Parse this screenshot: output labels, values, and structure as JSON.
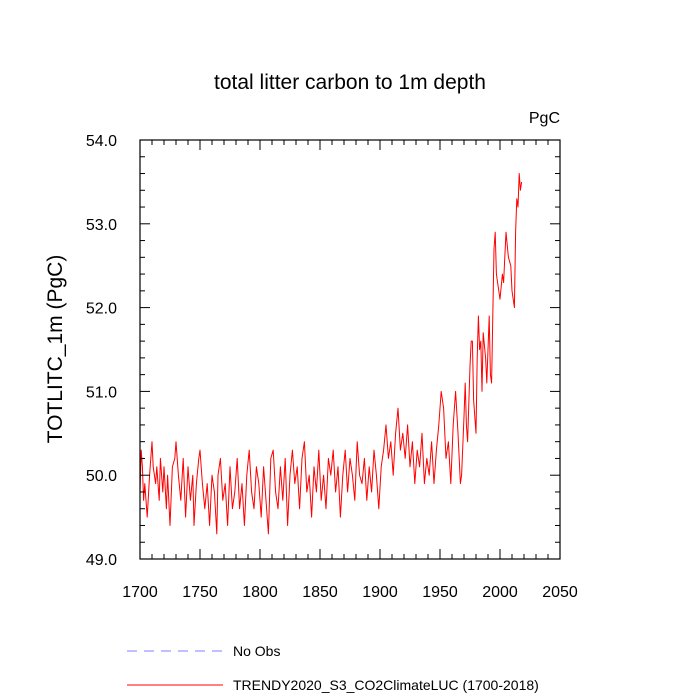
{
  "chart_data": {
    "type": "line",
    "title": "total litter carbon to 1m depth",
    "units_label": "PgC",
    "ylabel": "TOTLITC_1m  (PgC)",
    "xlabel": "",
    "xlim": [
      1700,
      2050
    ],
    "ylim": [
      49.0,
      54.0
    ],
    "x_ticks": [
      1700,
      1750,
      1800,
      1850,
      1900,
      1950,
      2000,
      2050
    ],
    "x_tick_labels": [
      "1700",
      "1750",
      "1800",
      "1850",
      "1900",
      "1950",
      "2000",
      "2050"
    ],
    "y_ticks": [
      49.0,
      50.0,
      51.0,
      52.0,
      53.0,
      54.0
    ],
    "y_tick_labels": [
      "49.0",
      "50.0",
      "51.0",
      "52.0",
      "53.0",
      "54.0"
    ],
    "grid": false,
    "legend_position": "bottom",
    "series": [
      {
        "name": "No Obs",
        "color": "#8080ff",
        "dashed": true,
        "x": [],
        "y": []
      },
      {
        "name": "TRENDY2020_S3_CO2ClimateLUC (1700-2018)",
        "color": "#ff0000",
        "dashed": false,
        "x": [
          1700,
          1701,
          1702,
          1703,
          1704,
          1706,
          1708,
          1710,
          1711,
          1713,
          1714,
          1716,
          1717,
          1719,
          1720,
          1722,
          1723,
          1725,
          1727,
          1729,
          1730,
          1732,
          1734,
          1736,
          1738,
          1740,
          1742,
          1744,
          1745,
          1747,
          1749,
          1750,
          1752,
          1754,
          1756,
          1758,
          1760,
          1762,
          1764,
          1765,
          1767,
          1769,
          1771,
          1773,
          1775,
          1777,
          1779,
          1781,
          1783,
          1785,
          1787,
          1789,
          1791,
          1793,
          1795,
          1797,
          1799,
          1801,
          1803,
          1805,
          1807,
          1809,
          1811,
          1813,
          1815,
          1817,
          1819,
          1821,
          1823,
          1825,
          1827,
          1829,
          1831,
          1833,
          1835,
          1837,
          1839,
          1841,
          1843,
          1845,
          1847,
          1849,
          1851,
          1853,
          1855,
          1857,
          1859,
          1861,
          1863,
          1865,
          1867,
          1869,
          1871,
          1873,
          1875,
          1877,
          1879,
          1881,
          1883,
          1885,
          1887,
          1889,
          1891,
          1893,
          1895,
          1897,
          1899,
          1901,
          1903,
          1905,
          1907,
          1909,
          1911,
          1913,
          1915,
          1917,
          1919,
          1921,
          1923,
          1925,
          1927,
          1929,
          1931,
          1933,
          1935,
          1937,
          1939,
          1941,
          1943,
          1945,
          1947,
          1949,
          1951,
          1953,
          1955,
          1957,
          1959,
          1961,
          1963,
          1965,
          1967,
          1968,
          1970,
          1971,
          1972,
          1973,
          1975,
          1976,
          1977,
          1978,
          1980,
          1981,
          1982,
          1983,
          1984,
          1985,
          1986,
          1988,
          1989,
          1991,
          1992,
          1993,
          1995,
          1996,
          1997,
          1999,
          2000,
          2002,
          2003,
          2005,
          2007,
          2009,
          2010,
          2012,
          2013,
          2014,
          2015,
          2016,
          2017,
          2018
        ],
        "y": [
          49.8,
          50.3,
          50.1,
          49.7,
          49.9,
          49.5,
          50.0,
          50.4,
          50.1,
          49.9,
          50.1,
          49.7,
          50.2,
          49.8,
          50.1,
          49.6,
          50.0,
          49.4,
          50.1,
          50.2,
          50.4,
          50.0,
          49.7,
          50.2,
          49.5,
          50.1,
          49.7,
          50.0,
          49.4,
          49.9,
          50.2,
          50.3,
          49.9,
          49.6,
          49.9,
          49.4,
          50.0,
          49.8,
          49.3,
          50.0,
          50.2,
          49.7,
          49.9,
          49.4,
          50.1,
          49.6,
          49.8,
          50.2,
          49.6,
          49.9,
          49.4,
          50.0,
          50.3,
          49.8,
          49.6,
          50.1,
          49.9,
          49.5,
          50.1,
          49.7,
          49.3,
          50.2,
          50.3,
          49.8,
          49.6,
          50.1,
          49.7,
          50.2,
          49.4,
          50.0,
          50.3,
          49.9,
          50.1,
          49.6,
          50.2,
          50.4,
          49.8,
          50.0,
          49.5,
          50.1,
          49.8,
          50.3,
          49.7,
          50.0,
          49.6,
          50.2,
          50.0,
          50.3,
          49.8,
          50.1,
          49.5,
          50.0,
          50.3,
          49.8,
          50.2,
          50.0,
          49.7,
          50.4,
          50.0,
          49.9,
          50.2,
          49.7,
          50.1,
          49.8,
          50.3,
          50.0,
          49.6,
          50.1,
          50.3,
          50.6,
          50.2,
          50.4,
          50.0,
          50.5,
          50.8,
          50.3,
          50.5,
          50.2,
          50.6,
          50.1,
          50.4,
          49.9,
          50.3,
          50.1,
          50.5,
          49.9,
          50.2,
          50.0,
          50.4,
          49.9,
          50.3,
          50.6,
          51.0,
          50.8,
          50.2,
          50.4,
          49.9,
          50.6,
          51.0,
          50.5,
          49.9,
          50.0,
          50.7,
          51.1,
          50.6,
          50.4,
          51.3,
          51.6,
          51.6,
          50.9,
          50.5,
          51.4,
          51.9,
          51.5,
          51.6,
          51.0,
          51.7,
          51.4,
          51.1,
          51.9,
          51.2,
          51.1,
          52.7,
          52.9,
          52.4,
          52.2,
          52.1,
          52.4,
          52.3,
          52.9,
          52.6,
          52.5,
          52.2,
          52.0,
          52.9,
          53.3,
          53.2,
          53.6,
          53.4,
          53.5
        ]
      }
    ]
  }
}
